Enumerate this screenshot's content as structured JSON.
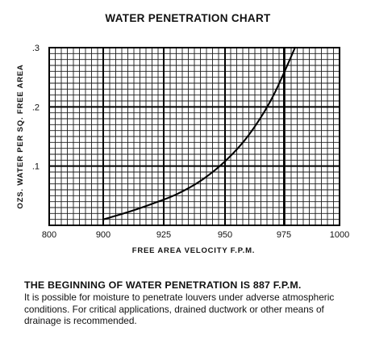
{
  "chart_data": {
    "type": "line",
    "title": "WATER PENETRATION CHART",
    "xlabel": "FREE AREA VELOCITY F.P.M.",
    "ylabel": "OZS. WATER PER SQ. FREE AREA",
    "xlim": [
      800,
      1000
    ],
    "ylim": [
      0,
      0.3
    ],
    "grid": true,
    "x_ticks": [
      "800",
      "900",
      "925",
      "950",
      "975",
      "1000"
    ],
    "y_ticks": [
      ".1",
      ".2",
      ".3"
    ],
    "series": [
      {
        "x": [
          900,
          910,
          920,
          930,
          940,
          950,
          960,
          970,
          980
        ],
        "y": [
          0.01,
          0.022,
          0.036,
          0.052,
          0.075,
          0.108,
          0.152,
          0.215,
          0.3
        ]
      }
    ]
  },
  "note": {
    "heading": "THE BEGINNING OF WATER PENETRATION IS 887 F.P.M.",
    "body": "It is possible for moisture to penetrate louvers under adverse atmospheric conditions. For critical applications, drained ductwork or other means of drainage is recommended."
  }
}
